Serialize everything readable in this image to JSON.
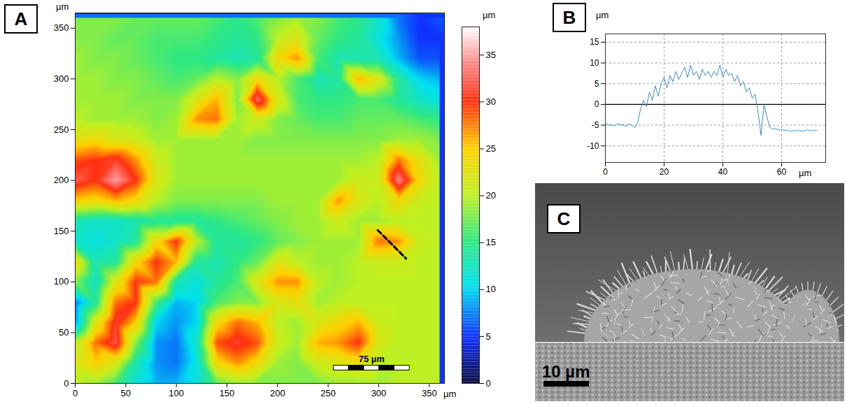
{
  "chart_data": [
    {
      "panel": "A",
      "type": "heatmap",
      "xlabel": "µm",
      "ylabel": "µm",
      "xlim": [
        0,
        365
      ],
      "ylim": [
        0,
        365
      ],
      "xticks": [
        0,
        50,
        100,
        150,
        200,
        250,
        300,
        350
      ],
      "yticks": [
        0,
        50,
        100,
        150,
        200,
        250,
        300,
        350
      ],
      "grid_x": [
        0,
        20,
        40,
        60,
        80,
        100,
        120,
        140,
        160,
        180,
        200,
        220,
        240,
        260,
        280,
        300,
        320,
        340,
        360
      ],
      "grid_y": [
        360,
        340,
        320,
        300,
        280,
        260,
        240,
        220,
        200,
        180,
        160,
        140,
        120,
        100,
        80,
        60,
        40,
        20,
        0
      ],
      "cells": [
        [
          18,
          18,
          18,
          17,
          17,
          17,
          17,
          16,
          15,
          16,
          18,
          19,
          18,
          16,
          15,
          12,
          7,
          5,
          6
        ],
        [
          18,
          18,
          17,
          17,
          16,
          16,
          16,
          15,
          14,
          15,
          20,
          22,
          17,
          15,
          14,
          11,
          8,
          5,
          5
        ],
        [
          19,
          18,
          18,
          17,
          16,
          15,
          15,
          14,
          13,
          14,
          24,
          27,
          16,
          13,
          13,
          13,
          9,
          6,
          6
        ],
        [
          19,
          19,
          18,
          18,
          17,
          16,
          17,
          20,
          18,
          24,
          20,
          16,
          13,
          14,
          26,
          22,
          14,
          10,
          9
        ],
        [
          19,
          19,
          19,
          18,
          18,
          18,
          22,
          26,
          18,
          33,
          22,
          16,
          15,
          15,
          16,
          16,
          14,
          12,
          11
        ],
        [
          20,
          19,
          19,
          19,
          18,
          19,
          27,
          28,
          19,
          21,
          18,
          17,
          16,
          16,
          17,
          17,
          17,
          16,
          15
        ],
        [
          23,
          24,
          22,
          21,
          19,
          19,
          19,
          19,
          19,
          18,
          18,
          18,
          18,
          18,
          18,
          18,
          19,
          19,
          18
        ],
        [
          29,
          30,
          31,
          27,
          21,
          19,
          19,
          19,
          19,
          19,
          19,
          19,
          19,
          19,
          19,
          20,
          28,
          23,
          19
        ],
        [
          32,
          30,
          35,
          30,
          22,
          19,
          19,
          19,
          19,
          19,
          19,
          19,
          19,
          19,
          21,
          21,
          34,
          24,
          20
        ],
        [
          25,
          24,
          26,
          24,
          20,
          18,
          18,
          18,
          18,
          18,
          19,
          19,
          19,
          27,
          22,
          20,
          24,
          21,
          20
        ],
        [
          13,
          12,
          12,
          13,
          14,
          14,
          14,
          15,
          16,
          17,
          18,
          19,
          19,
          21,
          19,
          19,
          20,
          20,
          20
        ],
        [
          12,
          11,
          12,
          14,
          24,
          30,
          20,
          14,
          14,
          15,
          17,
          18,
          19,
          19,
          19,
          28,
          27,
          21,
          20
        ],
        [
          24,
          13,
          14,
          24,
          30,
          26,
          14,
          13,
          15,
          17,
          22,
          20,
          19,
          19,
          20,
          21,
          21,
          20,
          20
        ],
        [
          18,
          12,
          22,
          30,
          28,
          13,
          11,
          14,
          16,
          22,
          27,
          27,
          20,
          19,
          20,
          20,
          20,
          20,
          20
        ],
        [
          7,
          14,
          28,
          30,
          16,
          9,
          10,
          16,
          18,
          18,
          22,
          23,
          19,
          20,
          20,
          20,
          20,
          20,
          20
        ],
        [
          8,
          22,
          31,
          25,
          10,
          8,
          10,
          24,
          28,
          26,
          20,
          19,
          22,
          24,
          26,
          21,
          20,
          20,
          20
        ],
        [
          20,
          28,
          32,
          18,
          8,
          7,
          12,
          29,
          31,
          29,
          21,
          19,
          26,
          27,
          30,
          22,
          20,
          20,
          20
        ],
        [
          22,
          25,
          22,
          13,
          8,
          7,
          11,
          24,
          27,
          24,
          19,
          18,
          21,
          22,
          23,
          20,
          20,
          20,
          20
        ],
        [
          20,
          19,
          16,
          11,
          9,
          9,
          11,
          17,
          19,
          18,
          18,
          18,
          18,
          19,
          19,
          19,
          20,
          20,
          20
        ]
      ],
      "colorbar": {
        "label": "µm",
        "range": [
          0,
          38
        ],
        "ticks": [
          0,
          5,
          10,
          15,
          20,
          25,
          30,
          35
        ]
      },
      "scale_bar": {
        "label": "75 µm",
        "length": 75
      },
      "profile_line": {
        "x": [
          299,
          327
        ],
        "y": [
          151,
          123
        ]
      }
    },
    {
      "panel": "B",
      "type": "line",
      "xlabel": "µm",
      "ylabel": "µm",
      "xlim": [
        0,
        75
      ],
      "ylim": [
        -14,
        17
      ],
      "xticks": [
        0,
        20,
        40,
        60
      ],
      "yticks": [
        -10,
        -5,
        0,
        5,
        10,
        15
      ],
      "grid": true,
      "zero_line": 0,
      "color": "#3a8fd6",
      "x": [
        0,
        1,
        2,
        3,
        4,
        5,
        6,
        7,
        8,
        9,
        10,
        11,
        12,
        13,
        14,
        15,
        16,
        17,
        18,
        19,
        20,
        21,
        22,
        23,
        24,
        25,
        26,
        27,
        28,
        29,
        30,
        31,
        32,
        33,
        34,
        35,
        36,
        37,
        38,
        39,
        40,
        41,
        42,
        43,
        44,
        45,
        46,
        47,
        48,
        49,
        50,
        51,
        52,
        53,
        54,
        55,
        56,
        57,
        58,
        59,
        60,
        61,
        62,
        63,
        64,
        65,
        66,
        67,
        68,
        69,
        70,
        71,
        72
      ],
      "values": [
        -4.5,
        -5,
        -4.8,
        -5.2,
        -4.6,
        -5,
        -4.8,
        -5.3,
        -4.7,
        -5,
        -5.6,
        -4.5,
        -1,
        1,
        -0.5,
        3,
        1,
        4.5,
        2,
        5,
        6.5,
        4,
        7,
        5.5,
        8,
        6,
        7.5,
        9,
        6.5,
        9.5,
        7,
        8,
        6,
        8.5,
        7,
        8,
        6.5,
        8,
        7,
        9.5,
        6.5,
        8.5,
        7,
        7.5,
        5.5,
        7,
        4.5,
        5.5,
        3,
        4,
        1.5,
        2.5,
        -2,
        -7.5,
        0,
        -3,
        -5.5,
        -6,
        -5.8,
        -6.2,
        -6,
        -6.3,
        -6.2,
        -6.5,
        -6.3,
        -6.4,
        -6.2,
        -6.5,
        -6.3,
        -6.1,
        -6.4,
        -6.2,
        -6.3
      ]
    },
    {
      "panel": "C",
      "type": "image",
      "scale_bar": {
        "label": "10 µm",
        "length": 10
      }
    }
  ]
}
